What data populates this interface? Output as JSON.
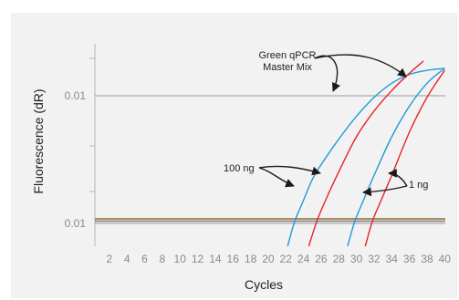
{
  "chart_data": {
    "type": "line",
    "xlabel": "Cycles",
    "ylabel": "Fluorescence (dR)",
    "x_ticks": [
      "2",
      "4",
      "6",
      "8",
      "10",
      "12",
      "14",
      "16",
      "18",
      "20",
      "22",
      "24",
      "26",
      "28",
      "30",
      "32",
      "34",
      "36",
      "38",
      "40"
    ],
    "xlim": [
      1,
      40
    ],
    "y_scale": "log",
    "y_tick_labels": [
      "0.01",
      "0.01"
    ],
    "grid": "horizontal reference lines at labeled y ticks",
    "threshold_lines": [
      {
        "color": "#a88a63"
      },
      {
        "color": "#7a7a7a"
      }
    ],
    "series": [
      {
        "color": "#1f9bd7",
        "x": [
          22.2,
          23,
          24,
          25,
          26,
          28,
          30,
          32,
          34,
          36,
          38,
          40
        ],
        "y": [
          0.008,
          0.011,
          0.0145,
          0.019,
          0.023,
          0.032,
          0.043,
          0.055,
          0.066,
          0.074,
          0.078,
          0.08
        ]
      },
      {
        "color": "#e52329",
        "x": [
          24.6,
          25.5,
          26.5,
          28,
          30,
          32,
          34,
          36,
          37.6
        ],
        "y": [
          0.008,
          0.011,
          0.0145,
          0.021,
          0.033,
          0.046,
          0.06,
          0.075,
          0.088
        ]
      },
      {
        "color": "#1f9bd7",
        "x": [
          29.0,
          29.8,
          30.8,
          32,
          34,
          36,
          38,
          40
        ],
        "y": [
          0.008,
          0.011,
          0.0145,
          0.02,
          0.033,
          0.049,
          0.066,
          0.08
        ]
      },
      {
        "color": "#e52329",
        "x": [
          31.0,
          31.8,
          32.8,
          34,
          36,
          38,
          40
        ],
        "y": [
          0.008,
          0.011,
          0.0145,
          0.02,
          0.035,
          0.055,
          0.078
        ]
      }
    ],
    "annotations": [
      {
        "text": [
          "Green qPCR",
          "Master Mix"
        ]
      },
      {
        "text": [
          "100 ng"
        ]
      },
      {
        "text": [
          "1 ng"
        ]
      }
    ]
  }
}
